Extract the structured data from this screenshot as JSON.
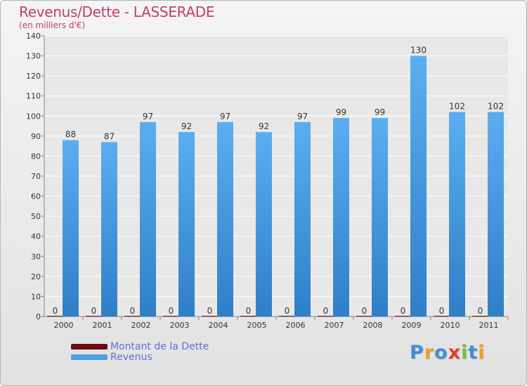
{
  "header": {
    "title": "Revenus/Dette - LASSERADE",
    "subtitle": "(en milliers d'€)"
  },
  "chart_data": {
    "type": "bar",
    "title": "Revenus/Dette - LASSERADE",
    "ylabel": "(en milliers d'€)",
    "xlabel": "",
    "categories": [
      "2000",
      "2001",
      "2002",
      "2003",
      "2004",
      "2005",
      "2006",
      "2007",
      "2008",
      "2009",
      "2010",
      "2011"
    ],
    "series": [
      {
        "name": "Montant de la Dette",
        "color": "#6b0d0d",
        "values": [
          0,
          0,
          0,
          0,
          0,
          0,
          0,
          0,
          0,
          0,
          0,
          0
        ]
      },
      {
        "name": "Revenus",
        "color": "#4da2e3",
        "values": [
          88,
          87,
          97,
          92,
          97,
          92,
          97,
          99,
          99,
          130,
          102,
          102
        ]
      }
    ],
    "ylim": [
      0,
      140
    ],
    "yticks": [
      0,
      10,
      20,
      30,
      40,
      50,
      60,
      70,
      80,
      90,
      100,
      110,
      120,
      130,
      140
    ],
    "grid": true,
    "legend": "bottom-left"
  },
  "legend": {
    "items": [
      {
        "label": "Montant de la Dette",
        "color": "#6b0d0d"
      },
      {
        "label": "Revenus",
        "color": "#4da2e3"
      }
    ]
  },
  "logo": {
    "letters": [
      "P",
      "r",
      "o",
      "x",
      "i",
      "t",
      "i"
    ],
    "colors": [
      "#3f8fd8",
      "#f0a020",
      "#3f8fd8",
      "#e0402a",
      "#7abf2a",
      "#3f8fd8",
      "#f0a020"
    ]
  }
}
